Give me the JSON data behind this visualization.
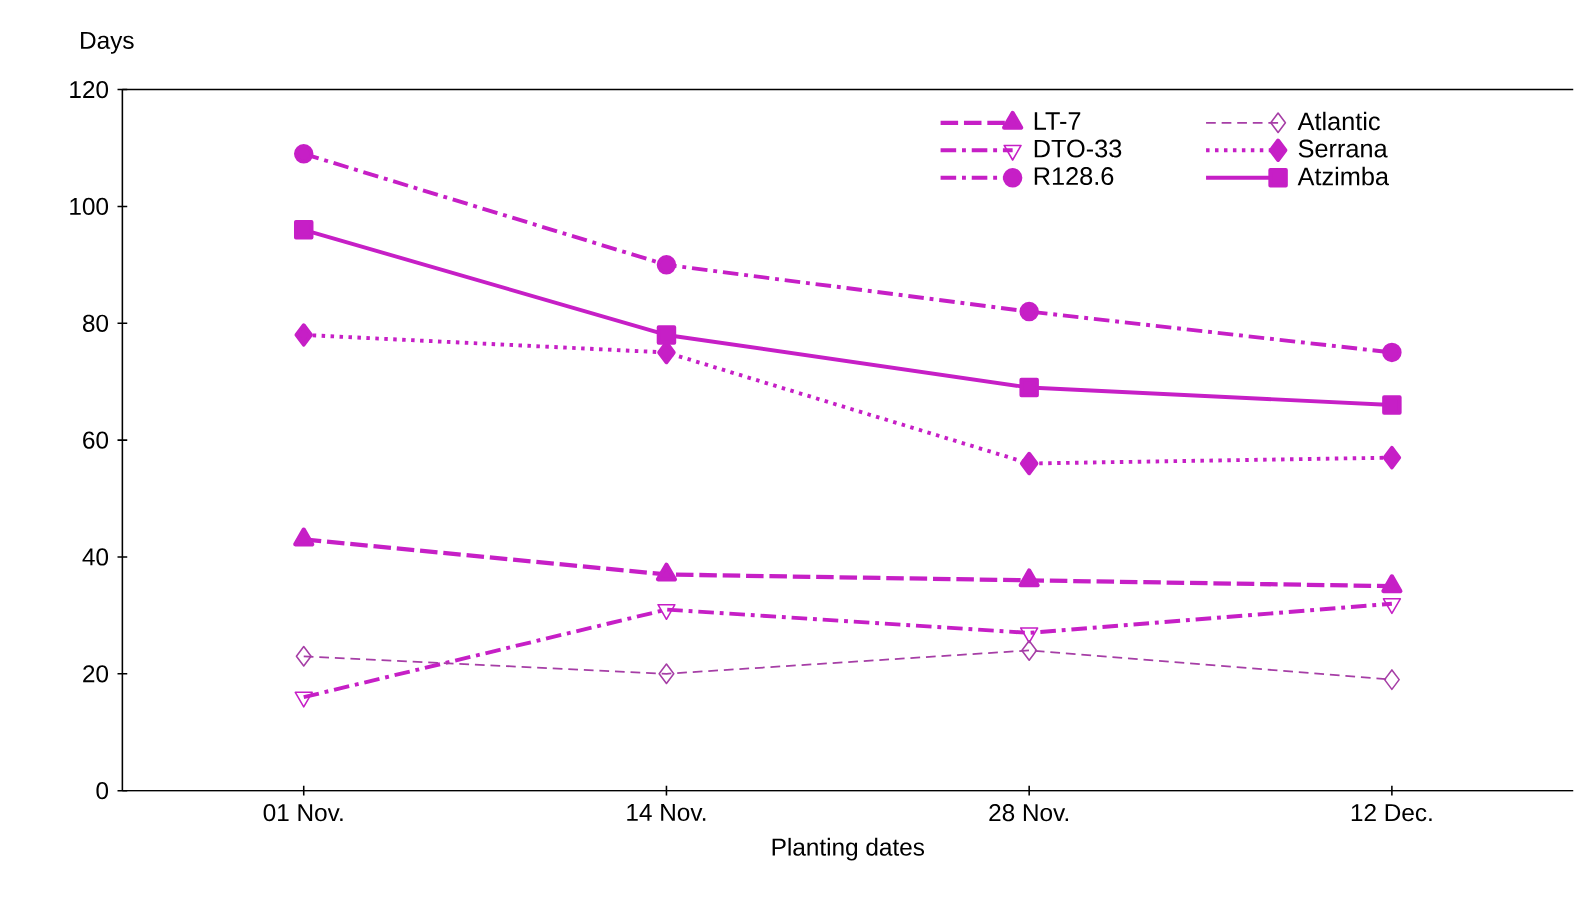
{
  "chart_data": {
    "type": "line",
    "xlabel": "Planting dates",
    "ylabel": "Days",
    "categories": [
      "01 Nov.",
      "14 Nov.",
      "28 Nov.",
      "12 Dec."
    ],
    "ylim": [
      0,
      120
    ],
    "yticks": [
      0,
      20,
      40,
      60,
      80,
      100,
      120
    ],
    "grid": false,
    "legend": "top right",
    "series": [
      {
        "name": "LT-7",
        "color": "#c61fc6",
        "values": [
          43,
          37,
          36,
          35
        ],
        "line_style": "dashed",
        "marker": "triangle"
      },
      {
        "name": "DTO-33",
        "color": "#c61fc6",
        "values": [
          16,
          31,
          27,
          32
        ],
        "line_style": "dashdot",
        "marker": "triangle_down_open"
      },
      {
        "name": "R128.6",
        "color": "#c61fc6",
        "values": [
          109,
          90,
          82,
          75
        ],
        "line_style": "dashdot",
        "marker": "circle"
      },
      {
        "name": "Atlantic",
        "color": "#a63ea6",
        "values": [
          23,
          20,
          24,
          19
        ],
        "line_style": "dashed_thin",
        "marker": "diamond_open"
      },
      {
        "name": "Serrana",
        "color": "#c61fc6",
        "values": [
          78,
          75,
          56,
          57
        ],
        "line_style": "dotted",
        "marker": "diamond"
      },
      {
        "name": "Atzimba",
        "color": "#c61fc6",
        "values": [
          96,
          78,
          69,
          66
        ],
        "line_style": "solid",
        "marker": "square"
      }
    ]
  }
}
